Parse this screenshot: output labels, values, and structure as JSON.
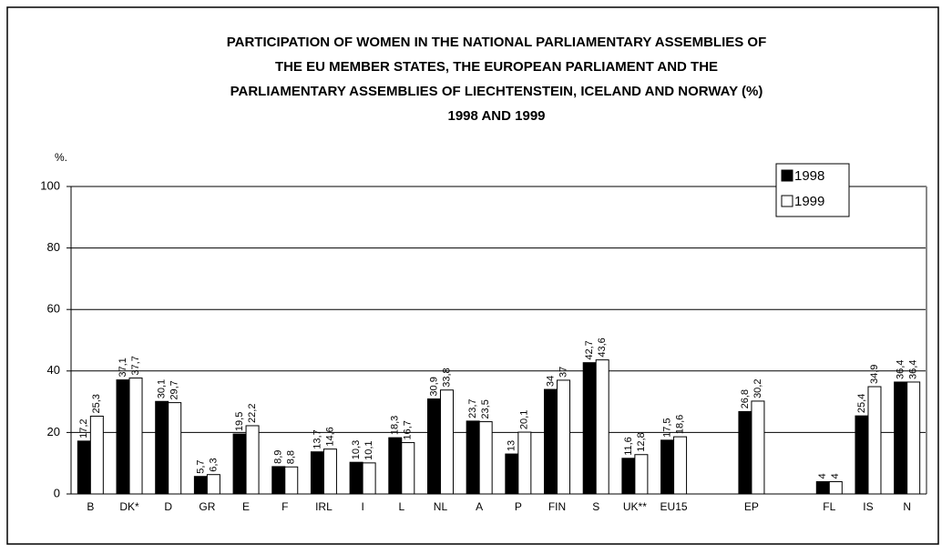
{
  "chart_data": {
    "type": "bar",
    "title": [
      "PARTICIPATION OF WOMEN IN THE NATIONAL PARLIAMENTARY ASSEMBLIES OF",
      "THE EU MEMBER STATES, THE EUROPEAN PARLIAMENT AND THE",
      "PARLIAMENTARY ASSEMBLIES OF LIECHTENSTEIN, ICELAND AND NORWAY (%)",
      "1998 AND 1999"
    ],
    "y_label": "%.",
    "categories": [
      "B",
      "DK*",
      "D",
      "GR",
      "E",
      "F",
      "IRL",
      "I",
      "L",
      "NL",
      "A",
      "P",
      "FIN",
      "S",
      "UK**",
      "EU15",
      null,
      "EP",
      null,
      "FL",
      "IS",
      "N"
    ],
    "series": [
      {
        "name": "1998",
        "color": "#000000",
        "values": [
          17.2,
          37.1,
          30.1,
          5.7,
          19.5,
          8.9,
          13.7,
          10.3,
          18.3,
          30.9,
          23.7,
          13,
          34,
          42.7,
          11.6,
          17.5,
          null,
          26.8,
          null,
          4,
          25.4,
          36.4
        ],
        "value_labels": [
          "17,2",
          "37,1",
          "30,1",
          "5,7",
          "19,5",
          "8,9",
          "13,7",
          "10,3",
          "18,3",
          "30,9",
          "23,7",
          "13",
          "34",
          "42,7",
          "11,6",
          "17,5",
          null,
          "26,8",
          null,
          "4",
          "25,4",
          "36,4"
        ]
      },
      {
        "name": "1999",
        "color": "#ffffff",
        "values": [
          25.3,
          37.7,
          29.7,
          6.3,
          22.2,
          8.8,
          14.6,
          10.1,
          16.7,
          33.8,
          23.5,
          20.1,
          37,
          43.6,
          12.8,
          18.6,
          null,
          30.2,
          null,
          4,
          34.9,
          36.4
        ],
        "value_labels": [
          "25,3",
          "37,7",
          "29,7",
          "6,3",
          "22,2",
          "8,8",
          "14,6",
          "10,1",
          "16,7",
          "33,8",
          "23,5",
          "20,1",
          "37",
          "43,6",
          "12,8",
          "18,6",
          null,
          "30,2",
          null,
          "4",
          "34,9",
          "36,4"
        ]
      }
    ],
    "ylim": [
      0,
      100
    ],
    "yticks": [
      0,
      20,
      40,
      60,
      80,
      100
    ],
    "grid": true,
    "legend": "upper right"
  }
}
